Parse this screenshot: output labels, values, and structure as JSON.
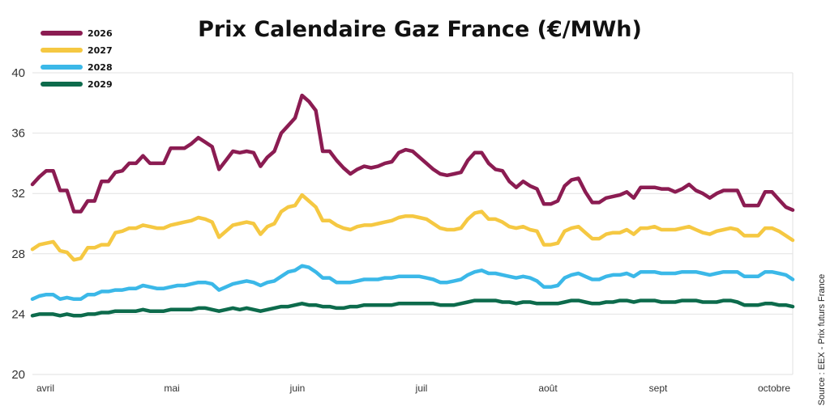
{
  "chart_data": {
    "type": "line",
    "title": "Prix Calendaire Gaz France (€/MWh)",
    "xlabel": "",
    "ylabel": "",
    "ylim": [
      20,
      40
    ],
    "yticks": [
      20,
      24,
      28,
      32,
      36,
      40
    ],
    "months": [
      "avril",
      "mai",
      "juin",
      "juil",
      "août",
      "sept",
      "octobre"
    ],
    "grid": true,
    "legend_position": "top-left",
    "source": "Source : EEX - Prix futurs France",
    "series": [
      {
        "name": "2026",
        "color": "#8b1c52",
        "values": [
          32.6,
          33.1,
          33.5,
          33.5,
          32.2,
          32.2,
          30.8,
          30.8,
          31.5,
          31.5,
          32.8,
          32.8,
          33.4,
          33.5,
          34.0,
          34.0,
          34.5,
          34.0,
          34.0,
          34.0,
          35.0,
          35.0,
          35.0,
          35.3,
          35.7,
          35.4,
          35.1,
          33.6,
          34.2,
          34.8,
          34.7,
          34.8,
          34.7,
          33.8,
          34.4,
          34.8,
          36.0,
          36.5,
          37.0,
          38.5,
          38.1,
          37.5,
          34.8,
          34.8,
          34.2,
          33.7,
          33.3,
          33.6,
          33.8,
          33.7,
          33.8,
          34.0,
          34.1,
          34.7,
          34.9,
          34.8,
          34.4,
          34.0,
          33.6,
          33.3,
          33.2,
          33.3,
          33.4,
          34.2,
          34.7,
          34.7,
          34.0,
          33.6,
          33.5,
          32.8,
          32.4,
          32.8,
          32.5,
          32.3,
          31.3,
          31.3,
          31.5,
          32.5,
          32.9,
          33.0,
          32.1,
          31.4,
          31.4,
          31.7,
          31.8,
          31.9,
          32.1,
          31.7,
          32.4,
          32.4,
          32.4,
          32.3,
          32.3,
          32.1,
          32.3,
          32.6,
          32.2,
          32.0,
          31.7,
          32.0,
          32.2,
          32.2,
          32.2,
          31.2,
          31.2,
          31.2,
          32.1,
          32.1,
          31.6,
          31.1,
          30.9
        ]
      },
      {
        "name": "2027",
        "color": "#f5c842",
        "values": [
          28.3,
          28.6,
          28.7,
          28.8,
          28.2,
          28.1,
          27.6,
          27.7,
          28.4,
          28.4,
          28.6,
          28.6,
          29.4,
          29.5,
          29.7,
          29.7,
          29.9,
          29.8,
          29.7,
          29.7,
          29.9,
          30.0,
          30.1,
          30.2,
          30.4,
          30.3,
          30.1,
          29.1,
          29.5,
          29.9,
          30.0,
          30.1,
          30.0,
          29.3,
          29.8,
          30.0,
          30.8,
          31.1,
          31.2,
          31.9,
          31.5,
          31.1,
          30.2,
          30.2,
          29.9,
          29.7,
          29.6,
          29.8,
          29.9,
          29.9,
          30.0,
          30.1,
          30.2,
          30.4,
          30.5,
          30.5,
          30.4,
          30.3,
          30.0,
          29.7,
          29.6,
          29.6,
          29.7,
          30.3,
          30.7,
          30.8,
          30.3,
          30.3,
          30.1,
          29.8,
          29.7,
          29.8,
          29.6,
          29.5,
          28.6,
          28.6,
          28.7,
          29.5,
          29.7,
          29.8,
          29.4,
          29.0,
          29.0,
          29.3,
          29.4,
          29.4,
          29.6,
          29.3,
          29.7,
          29.7,
          29.8,
          29.6,
          29.6,
          29.6,
          29.7,
          29.8,
          29.6,
          29.4,
          29.3,
          29.5,
          29.6,
          29.7,
          29.6,
          29.2,
          29.2,
          29.2,
          29.7,
          29.7,
          29.5,
          29.2,
          28.9
        ]
      },
      {
        "name": "2028",
        "color": "#3bb8e8",
        "values": [
          25.0,
          25.2,
          25.3,
          25.3,
          25.0,
          25.1,
          25.0,
          25.0,
          25.3,
          25.3,
          25.5,
          25.5,
          25.6,
          25.6,
          25.7,
          25.7,
          25.9,
          25.8,
          25.7,
          25.7,
          25.8,
          25.9,
          25.9,
          26.0,
          26.1,
          26.1,
          26.0,
          25.6,
          25.8,
          26.0,
          26.1,
          26.2,
          26.1,
          25.9,
          26.1,
          26.2,
          26.5,
          26.8,
          26.9,
          27.2,
          27.1,
          26.8,
          26.4,
          26.4,
          26.1,
          26.1,
          26.1,
          26.2,
          26.3,
          26.3,
          26.3,
          26.4,
          26.4,
          26.5,
          26.5,
          26.5,
          26.5,
          26.4,
          26.3,
          26.1,
          26.1,
          26.2,
          26.3,
          26.6,
          26.8,
          26.9,
          26.7,
          26.7,
          26.6,
          26.5,
          26.4,
          26.5,
          26.4,
          26.2,
          25.8,
          25.8,
          25.9,
          26.4,
          26.6,
          26.7,
          26.5,
          26.3,
          26.3,
          26.5,
          26.6,
          26.6,
          26.7,
          26.5,
          26.8,
          26.8,
          26.8,
          26.7,
          26.7,
          26.7,
          26.8,
          26.8,
          26.8,
          26.7,
          26.6,
          26.7,
          26.8,
          26.8,
          26.8,
          26.5,
          26.5,
          26.5,
          26.8,
          26.8,
          26.7,
          26.6,
          26.3
        ]
      },
      {
        "name": "2029",
        "color": "#0d6b4c",
        "values": [
          23.9,
          24.0,
          24.0,
          24.0,
          23.9,
          24.0,
          23.9,
          23.9,
          24.0,
          24.0,
          24.1,
          24.1,
          24.2,
          24.2,
          24.2,
          24.2,
          24.3,
          24.2,
          24.2,
          24.2,
          24.3,
          24.3,
          24.3,
          24.3,
          24.4,
          24.4,
          24.3,
          24.2,
          24.3,
          24.4,
          24.3,
          24.4,
          24.3,
          24.2,
          24.3,
          24.4,
          24.5,
          24.5,
          24.6,
          24.7,
          24.6,
          24.6,
          24.5,
          24.5,
          24.4,
          24.4,
          24.5,
          24.5,
          24.6,
          24.6,
          24.6,
          24.6,
          24.6,
          24.7,
          24.7,
          24.7,
          24.7,
          24.7,
          24.7,
          24.6,
          24.6,
          24.6,
          24.7,
          24.8,
          24.9,
          24.9,
          24.9,
          24.9,
          24.8,
          24.8,
          24.7,
          24.8,
          24.8,
          24.7,
          24.7,
          24.7,
          24.7,
          24.8,
          24.9,
          24.9,
          24.8,
          24.7,
          24.7,
          24.8,
          24.8,
          24.9,
          24.9,
          24.8,
          24.9,
          24.9,
          24.9,
          24.8,
          24.8,
          24.8,
          24.9,
          24.9,
          24.9,
          24.8,
          24.8,
          24.8,
          24.9,
          24.9,
          24.8,
          24.6,
          24.6,
          24.6,
          24.7,
          24.7,
          24.6,
          24.6,
          24.5
        ]
      }
    ]
  }
}
